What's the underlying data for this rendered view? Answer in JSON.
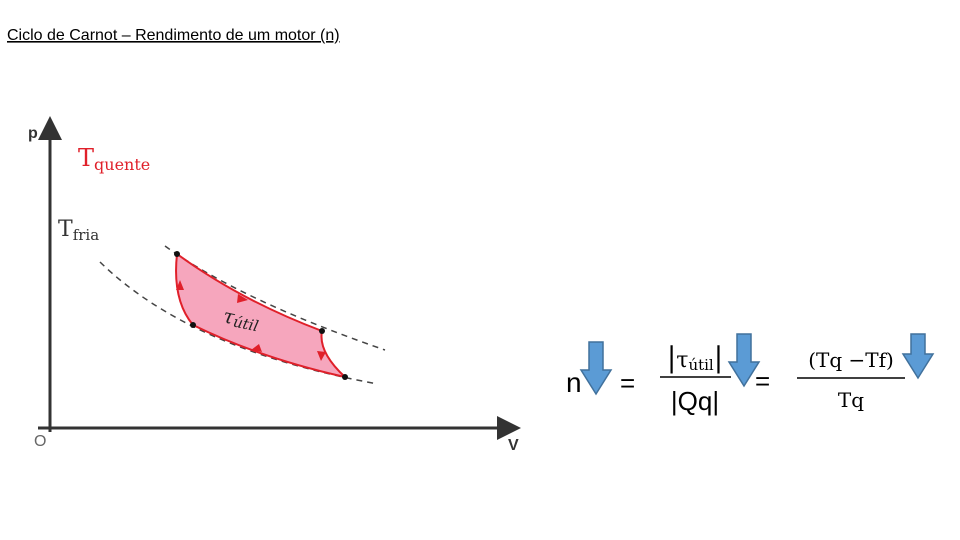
{
  "title": "Ciclo de Carnot – Rendimento de um motor (n)",
  "diagram": {
    "y_axis": "p",
    "x_axis": "V",
    "origin": "O",
    "hot_isotherm": {
      "symbol": "T",
      "subscript": "quente"
    },
    "cold_isotherm": {
      "symbol": "T",
      "subscript": "fria"
    },
    "work": {
      "symbol": "τ",
      "subscript": "útil"
    }
  },
  "formula": {
    "lhs": "n",
    "eq1": "=",
    "frac1": {
      "num": {
        "open": "|",
        "symbol": "τ",
        "subscript": "útil",
        "close": "|"
      },
      "den": "|Qq|"
    },
    "eq2": "=",
    "frac2": {
      "num": "(Tq −Tf)",
      "den": "Tq"
    }
  }
}
